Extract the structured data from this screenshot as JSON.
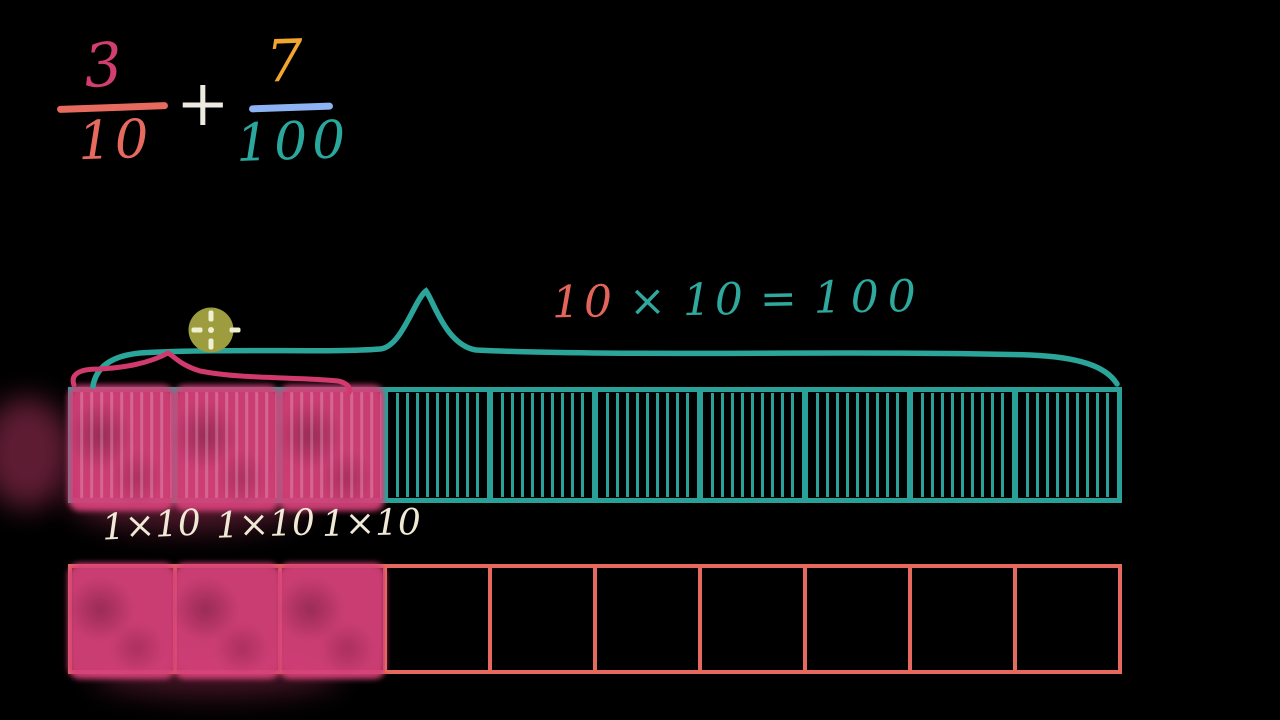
{
  "video": {
    "background_color": "#000000",
    "description": "Hand-drawn math lesson frame: adding fractions with tenths and hundredths models"
  },
  "expression": {
    "numerator1": "3",
    "denominator1": "10",
    "operator": "+",
    "numerator2": "7",
    "denominator2": "100",
    "colors": {
      "numerator1": "#d23e6f",
      "fraction_bar1": "#e66a5e",
      "denominator1": "#e66a5e",
      "operator": "#eeeae2",
      "numerator2": "#f2a52f",
      "fraction_bar2": "#8db3f2",
      "denominator2": "#2aa89d"
    }
  },
  "equation": {
    "segments": [
      {
        "text": "10",
        "color": "#e2645a"
      },
      {
        "text": "×",
        "color": "#2fa89d"
      },
      {
        "text": "10",
        "color": "#2fa89d"
      },
      {
        "text": "=",
        "color": "#2fa89d"
      },
      {
        "text": "100",
        "color": "#2fa89d"
      }
    ]
  },
  "hundredths_bar": {
    "cell_count": 10,
    "strips_per_cell": 10,
    "shaded_cells": 3,
    "border_color": "#2aa198",
    "shade_color": "#d13e70",
    "brace_color": "#2ba49a"
  },
  "cell_labels": [
    "1×10",
    "1×10",
    "1×10"
  ],
  "tenths_bar": {
    "cell_count": 10,
    "shaded_cells": 3,
    "border_color": "#e5695e",
    "shade_color": "#d13e70",
    "brace_color": "#d13a6c"
  },
  "cursor": {
    "fill_color": "#9d9d3f",
    "crosshair_color": "#eff0d2"
  }
}
